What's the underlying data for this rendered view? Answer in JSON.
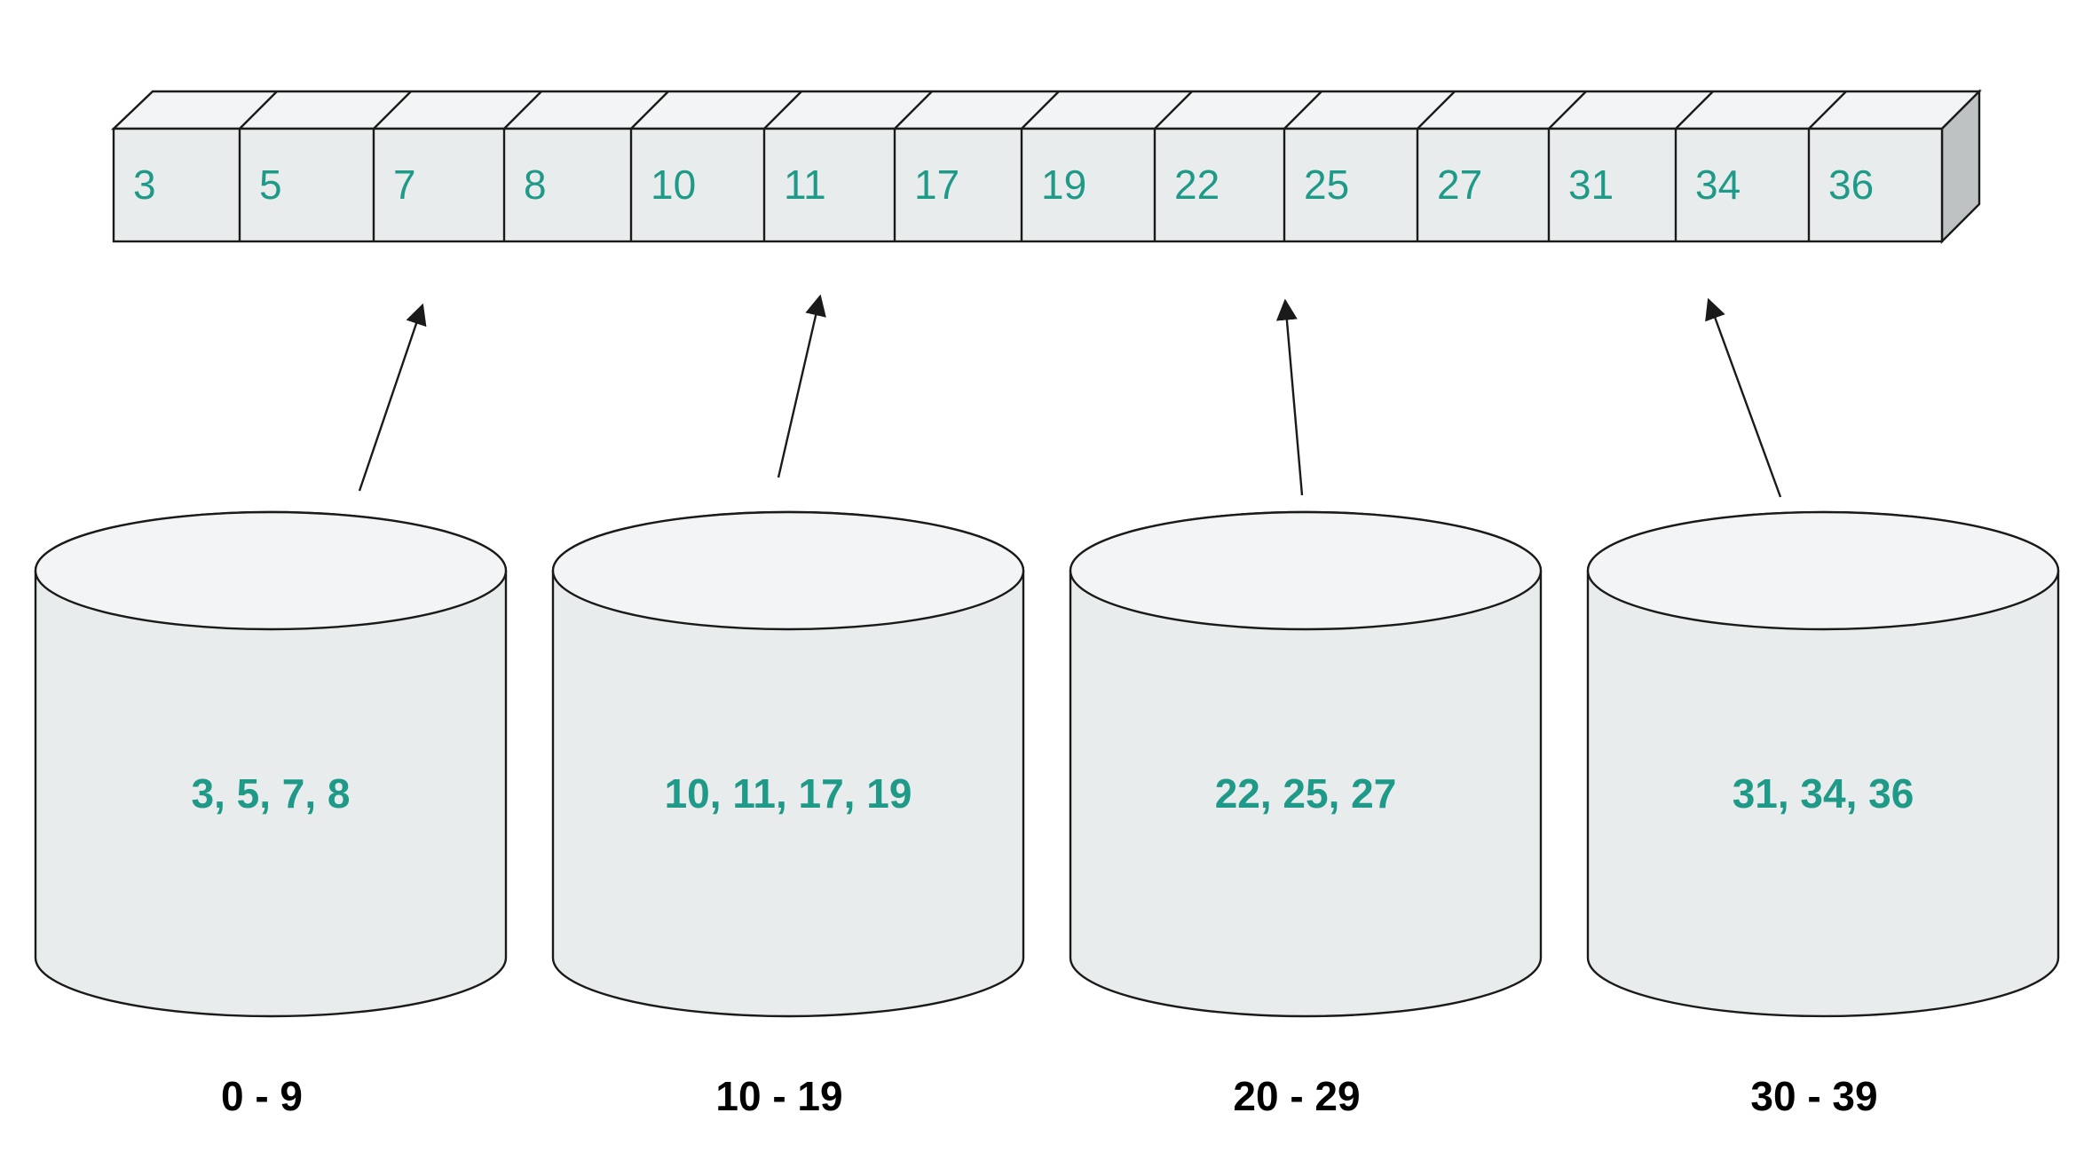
{
  "array": {
    "values": [
      "3",
      "5",
      "7",
      "8",
      "10",
      "11",
      "17",
      "19",
      "22",
      "25",
      "27",
      "31",
      "34",
      "36"
    ]
  },
  "buckets": [
    {
      "contents": "3, 5, 7, 8",
      "range": "0 - 9"
    },
    {
      "contents": "10, 11, 17, 19",
      "range": "10 - 19"
    },
    {
      "contents": "22, 25, 27",
      "range": "20 - 29"
    },
    {
      "contents": "31, 34, 36",
      "range": "30 - 39"
    }
  ],
  "colors": {
    "text_accent": "#1f9a88",
    "shape_fill": "#e9ecec",
    "shape_top": "#f3f4f5",
    "shape_side": "#bfc2c3",
    "stroke": "#1a1a1a"
  }
}
